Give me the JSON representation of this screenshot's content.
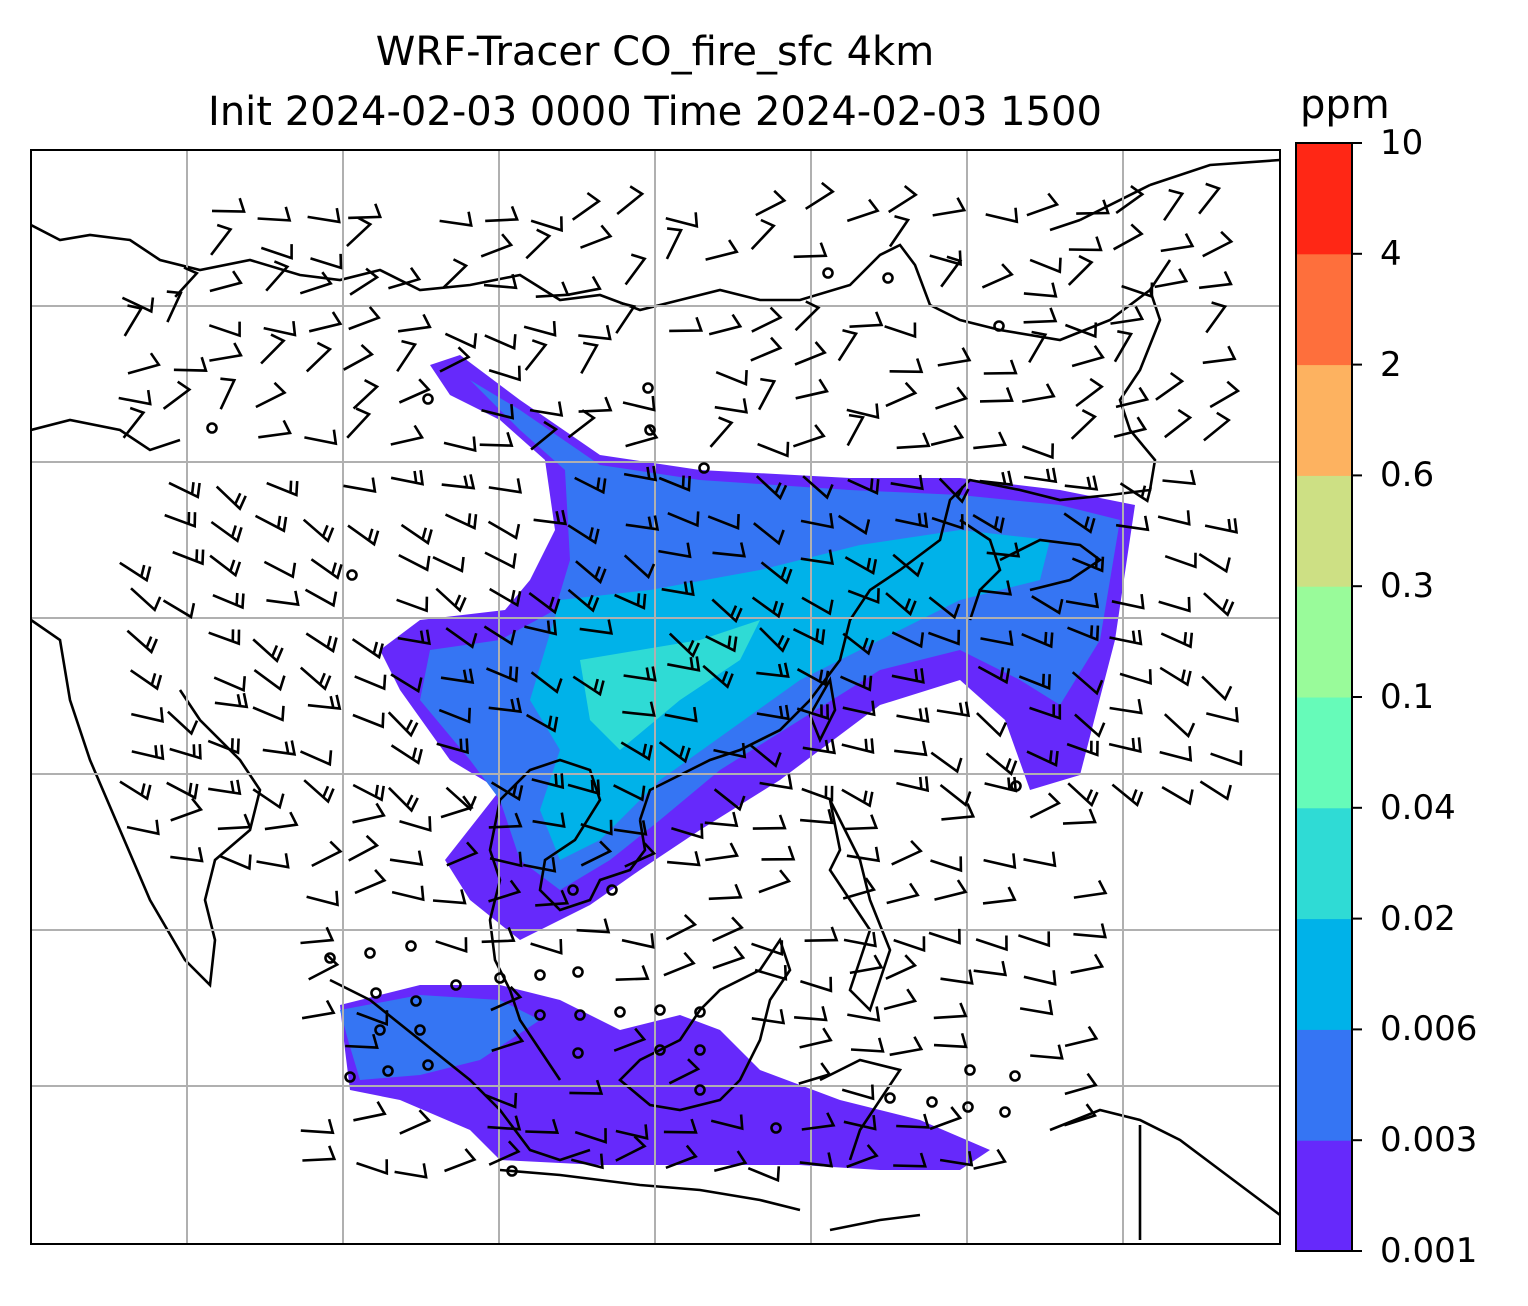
{
  "title_line1": "WRF-Tracer CO_fire_sfc 4km",
  "title_line2": "Init 2024-02-03 0000 Time 2024-02-03 1500",
  "colorbar": {
    "unit": "ppm",
    "levels": [
      "0.001",
      "0.003",
      "0.006",
      "0.02",
      "0.04",
      "0.1",
      "0.3",
      "0.6",
      "2",
      "4",
      "10"
    ],
    "colors": [
      "#6629fb",
      "#3575f3",
      "#00b2e9",
      "#2fdbd5",
      "#66fbb9",
      "#99fb9a",
      "#cde084",
      "#fdb260",
      "#fe6f3c",
      "#ff2715"
    ]
  },
  "map": {
    "gridlines": true,
    "plume_colors": {
      "low": "#6629fb",
      "mid": "#3575f3",
      "high": "#00b2e9",
      "peak": "#2fdbd5"
    }
  }
}
